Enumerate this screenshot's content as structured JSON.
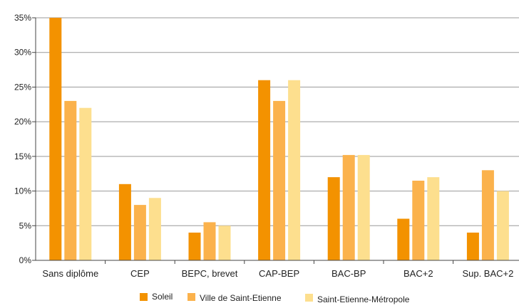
{
  "chart_data": {
    "type": "bar",
    "categories": [
      "Sans diplôme",
      "CEP",
      "BEPC, brevet",
      "CAP-BEP",
      "BAC-BP",
      "BAC+2",
      "Sup. BAC+2"
    ],
    "series": [
      {
        "name": "Soleil",
        "values": [
          35,
          11,
          4,
          26,
          12,
          6,
          4
        ]
      },
      {
        "name": "Ville de Saint-Etienne",
        "values": [
          23,
          8,
          5.5,
          23,
          15.2,
          11.5,
          13
        ]
      },
      {
        "name": "Saint-Etienne-Métropole",
        "values": [
          22,
          9,
          5,
          26,
          15.2,
          12,
          10
        ]
      }
    ],
    "yticks": [
      "0%",
      "5%",
      "10%",
      "15%",
      "20%",
      "25%",
      "30%",
      "35%"
    ],
    "ylim": [
      0,
      35
    ],
    "grid": true,
    "legend_position": "bottom",
    "colors": [
      "#F39200",
      "#FBB24C",
      "#FDDF8E"
    ],
    "axis_color": "#444444",
    "grid_color": "#999999"
  }
}
